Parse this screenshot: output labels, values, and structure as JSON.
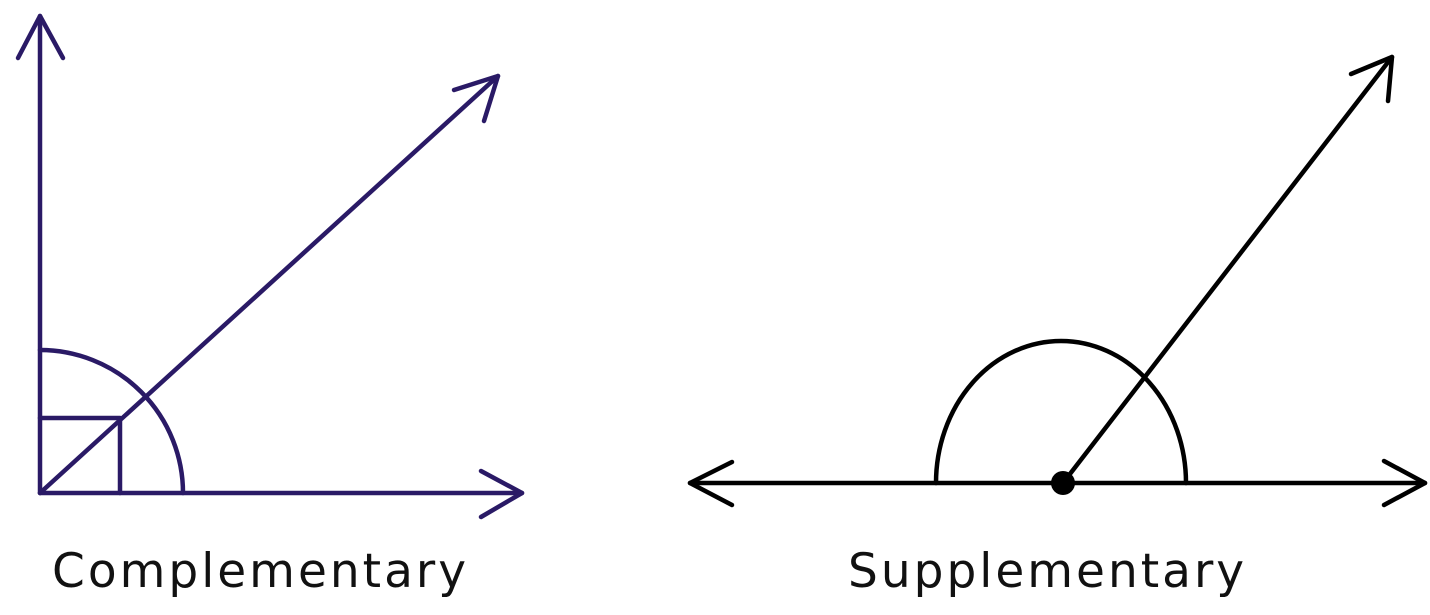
{
  "figures": {
    "complementary": {
      "label": "Complementary",
      "color": "#2a1a66"
    },
    "supplementary": {
      "label": "Supplementary",
      "color": "#000000"
    }
  }
}
